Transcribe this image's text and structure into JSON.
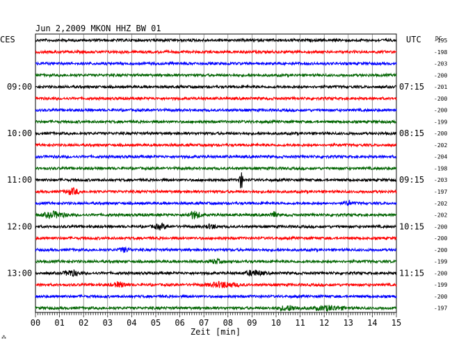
{
  "chart_data": {
    "type": "line",
    "title": "Jun 2,2009   MKON HHZ BW 01",
    "left_timezone": "CES",
    "right_timezone": "UTC",
    "dc_header": "DC",
    "xlabel": "Zeit [min]",
    "xlim": [
      0,
      15
    ],
    "x_ticks": [
      "00",
      "01",
      "02",
      "03",
      "04",
      "05",
      "06",
      "07",
      "08",
      "09",
      "10",
      "11",
      "12",
      "13",
      "14",
      "15"
    ],
    "grid": true,
    "trace_colors": [
      "#000000",
      "#ff0000",
      "#0000ff",
      "#006400"
    ],
    "left_hour_labels": [
      {
        "trace": 4,
        "label": "09:00"
      },
      {
        "trace": 8,
        "label": "10:00"
      },
      {
        "trace": 12,
        "label": "11:00"
      },
      {
        "trace": 16,
        "label": "12:00"
      },
      {
        "trace": 20,
        "label": "13:00"
      }
    ],
    "right_hour_labels": [
      {
        "trace": 4,
        "label": "07:15"
      },
      {
        "trace": 8,
        "label": "08:15"
      },
      {
        "trace": 12,
        "label": "09:15"
      },
      {
        "trace": 16,
        "label": "10:15"
      },
      {
        "trace": 20,
        "label": "11:15"
      }
    ],
    "dc_offsets": [
      "-195",
      "-198",
      "-203",
      "-200",
      "-201",
      "-200",
      "-200",
      "-199",
      "-200",
      "-202",
      "-204",
      "-198",
      "-203",
      "-197",
      "-202",
      "-202",
      "-200",
      "-200",
      "-200",
      "-199",
      "-200",
      "-199",
      "-200",
      "-197"
    ],
    "events": [
      {
        "trace": 12,
        "minute": 8.55,
        "amplitude": 12,
        "width": 0.1
      },
      {
        "trace": 13,
        "minute": 1.55,
        "amplitude": 4,
        "width": 0.35
      },
      {
        "trace": 14,
        "minute": 13.0,
        "amplitude": 3,
        "width": 0.2
      },
      {
        "trace": 15,
        "minute": 0.8,
        "amplitude": 4,
        "width": 0.6
      },
      {
        "trace": 15,
        "minute": 6.6,
        "amplitude": 5,
        "width": 0.35
      },
      {
        "trace": 15,
        "minute": 9.9,
        "amplitude": 4,
        "width": 0.15
      },
      {
        "trace": 16,
        "minute": 5.2,
        "amplitude": 3,
        "width": 0.4
      },
      {
        "trace": 16,
        "minute": 7.3,
        "amplitude": 2.5,
        "width": 0.3
      },
      {
        "trace": 18,
        "minute": 3.7,
        "amplitude": 2.5,
        "width": 0.3
      },
      {
        "trace": 19,
        "minute": 7.5,
        "amplitude": 2.5,
        "width": 0.3
      },
      {
        "trace": 20,
        "minute": 1.5,
        "amplitude": 4,
        "width": 0.4
      },
      {
        "trace": 20,
        "minute": 9.1,
        "amplitude": 3.5,
        "width": 0.5
      },
      {
        "trace": 21,
        "minute": 3.5,
        "amplitude": 3,
        "width": 0.4
      },
      {
        "trace": 21,
        "minute": 7.8,
        "amplitude": 3.5,
        "width": 0.8
      },
      {
        "trace": 23,
        "minute": 10.5,
        "amplitude": 3,
        "width": 0.6
      },
      {
        "trace": 23,
        "minute": 12.2,
        "amplitude": 3,
        "width": 0.8
      }
    ]
  },
  "footer_mark": "⁂"
}
